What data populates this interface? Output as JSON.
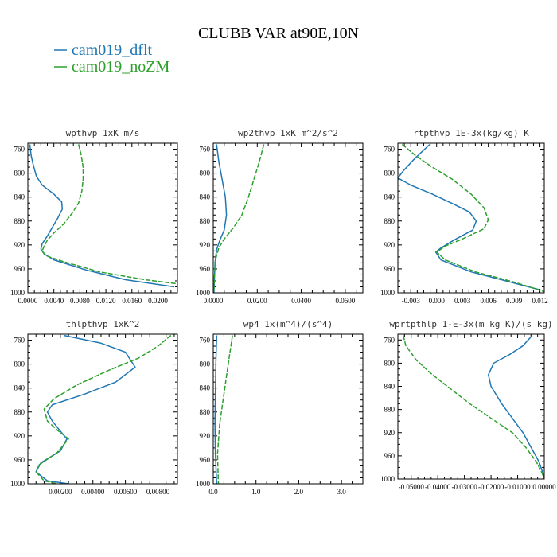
{
  "title": "CLUBB VAR at90E,10N",
  "legend": [
    {
      "name": "cam019_dflt",
      "color": "#1f77b4",
      "dash": "none"
    },
    {
      "name": "cam019_noZM",
      "color": "#2ca02c",
      "dash": "6,2"
    }
  ],
  "chart_data": [
    {
      "type": "line",
      "title": "wpthvp  1xK m/s",
      "xlim": [
        0,
        0.023
      ],
      "xticks": [
        0,
        0.004,
        0.008,
        0.012,
        0.016,
        0.02
      ],
      "xtick_labels": [
        "0.0000",
        "0.0040",
        "0.0080",
        "0.0120",
        "0.0160",
        "0.0200"
      ],
      "ylim": [
        750,
        1000
      ],
      "yticks": [
        760,
        800,
        840,
        880,
        920,
        960,
        1000
      ],
      "series": [
        {
          "name": "cam019_dflt",
          "points": [
            [
              0.0003,
              752
            ],
            [
              0.0005,
              770
            ],
            [
              0.0008,
              785
            ],
            [
              0.0013,
              805
            ],
            [
              0.0022,
              820
            ],
            [
              0.004,
              835
            ],
            [
              0.0052,
              848
            ],
            [
              0.0053,
              860
            ],
            [
              0.0046,
              875
            ],
            [
              0.0038,
              890
            ],
            [
              0.003,
              905
            ],
            [
              0.0022,
              918
            ],
            [
              0.002,
              927
            ],
            [
              0.0025,
              935
            ],
            [
              0.004,
              945
            ],
            [
              0.009,
              962
            ],
            [
              0.015,
              978
            ],
            [
              0.0225,
              990
            ]
          ]
        },
        {
          "name": "cam019_noZM",
          "points": [
            [
              0.0078,
              752
            ],
            [
              0.0082,
              770
            ],
            [
              0.0085,
              790
            ],
            [
              0.0085,
              810
            ],
            [
              0.0083,
              830
            ],
            [
              0.0078,
              850
            ],
            [
              0.0068,
              867
            ],
            [
              0.0055,
              885
            ],
            [
              0.004,
              900
            ],
            [
              0.003,
              912
            ],
            [
              0.0025,
              922
            ],
            [
              0.0022,
              930
            ],
            [
              0.0028,
              938
            ],
            [
              0.0055,
              948
            ],
            [
              0.011,
              965
            ],
            [
              0.018,
              978
            ],
            [
              0.023,
              985
            ]
          ]
        }
      ]
    },
    {
      "type": "line",
      "title": "wp2thvp  1xK m^2/s^2",
      "xlim": [
        0,
        0.068
      ],
      "xticks": [
        0,
        0.02,
        0.04,
        0.06
      ],
      "xtick_labels": [
        "0.0000",
        "0.0200",
        "0.0400",
        "0.0600"
      ],
      "ylim": [
        750,
        1000
      ],
      "yticks": [
        760,
        800,
        840,
        880,
        920,
        960,
        1000
      ],
      "series": [
        {
          "name": "cam019_dflt",
          "points": [
            [
              0.0015,
              752
            ],
            [
              0.0025,
              780
            ],
            [
              0.004,
              810
            ],
            [
              0.0055,
              840
            ],
            [
              0.006,
              870
            ],
            [
              0.005,
              895
            ],
            [
              0.003,
              912
            ],
            [
              0.0015,
              928
            ],
            [
              0.0008,
              950
            ],
            [
              0.0005,
              980
            ],
            [
              0.0003,
              1000
            ]
          ]
        },
        {
          "name": "cam019_noZM",
          "points": [
            [
              0.023,
              752
            ],
            [
              0.021,
              780
            ],
            [
              0.0185,
              810
            ],
            [
              0.016,
              840
            ],
            [
              0.013,
              870
            ],
            [
              0.009,
              892
            ],
            [
              0.005,
              910
            ],
            [
              0.0025,
              925
            ],
            [
              0.001,
              945
            ],
            [
              0.0005,
              975
            ],
            [
              0.0003,
              1000
            ]
          ]
        }
      ]
    },
    {
      "type": "line",
      "title": "rtpthvp  1E-3x(kg/kg) K",
      "xlim": [
        -0.0045,
        0.0125
      ],
      "xticks": [
        -0.003,
        0,
        0.003,
        0.006,
        0.009,
        0.012
      ],
      "xtick_labels": [
        "-0.003",
        "0.000",
        "0.003",
        "0.006",
        "0.009",
        "0.012"
      ],
      "ylim": [
        750,
        1000
      ],
      "yticks": [
        760,
        800,
        840,
        880,
        920,
        960,
        1000
      ],
      "series": [
        {
          "name": "cam019_dflt",
          "points": [
            [
              -0.0008,
              752
            ],
            [
              -0.0025,
              775
            ],
            [
              -0.0038,
              795
            ],
            [
              -0.0045,
              808
            ],
            [
              -0.003,
              820
            ],
            [
              -0.0005,
              835
            ],
            [
              0.002,
              852
            ],
            [
              0.0038,
              865
            ],
            [
              0.0046,
              880
            ],
            [
              0.0042,
              895
            ],
            [
              0.002,
              912
            ],
            [
              0.0005,
              925
            ],
            [
              -0.0001,
              932
            ],
            [
              0.0005,
              945
            ],
            [
              0.004,
              965
            ],
            [
              0.008,
              980
            ],
            [
              0.012,
              995
            ]
          ]
        },
        {
          "name": "cam019_noZM",
          "points": [
            [
              -0.004,
              752
            ],
            [
              -0.0025,
              770
            ],
            [
              -0.0005,
              790
            ],
            [
              0.0018,
              810
            ],
            [
              0.004,
              835
            ],
            [
              0.0055,
              858
            ],
            [
              0.006,
              878
            ],
            [
              0.0055,
              893
            ],
            [
              0.003,
              910
            ],
            [
              0.001,
              922
            ],
            [
              0.0,
              932
            ],
            [
              0.001,
              945
            ],
            [
              0.0045,
              965
            ],
            [
              0.009,
              982
            ],
            [
              0.0125,
              998
            ]
          ]
        }
      ]
    },
    {
      "type": "line",
      "title": "thlpthvp  1xK^2",
      "xlim": [
        0,
        0.0092
      ],
      "xticks": [
        0.002,
        0.004,
        0.006,
        0.008
      ],
      "xtick_labels": [
        "0.00200",
        "0.00400",
        "0.00600",
        "0.00800"
      ],
      "ylim": [
        750,
        1000
      ],
      "yticks": [
        760,
        800,
        840,
        880,
        920,
        960,
        1000
      ],
      "series": [
        {
          "name": "cam019_dflt",
          "points": [
            [
              0.0022,
              752
            ],
            [
              0.0045,
              765
            ],
            [
              0.006,
              780
            ],
            [
              0.0066,
              805
            ],
            [
              0.0054,
              830
            ],
            [
              0.0035,
              850
            ],
            [
              0.0015,
              868
            ],
            [
              0.0012,
              880
            ],
            [
              0.0015,
              895
            ],
            [
              0.002,
              912
            ],
            [
              0.0024,
              925
            ],
            [
              0.002,
              945
            ],
            [
              0.0008,
              965
            ],
            [
              0.0005,
              980
            ],
            [
              0.0012,
              995
            ],
            [
              0.0025,
              1000
            ]
          ]
        },
        {
          "name": "cam019_noZM",
          "points": [
            [
              0.0088,
              752
            ],
            [
              0.008,
              770
            ],
            [
              0.0068,
              790
            ],
            [
              0.005,
              810
            ],
            [
              0.003,
              835
            ],
            [
              0.0016,
              858
            ],
            [
              0.001,
              875
            ],
            [
              0.0012,
              895
            ],
            [
              0.0018,
              910
            ],
            [
              0.0025,
              925
            ],
            [
              0.0018,
              948
            ],
            [
              0.0007,
              968
            ],
            [
              0.0005,
              980
            ],
            [
              0.001,
              995
            ],
            [
              0.0018,
              1000
            ]
          ]
        }
      ]
    },
    {
      "type": "line",
      "title": "wp4  1x(m^4)/(s^4)",
      "xlim": [
        0,
        3.5
      ],
      "xticks": [
        0,
        1,
        2,
        3
      ],
      "xtick_labels": [
        "0.0",
        "1.0",
        "2.0",
        "3.0"
      ],
      "ylim": [
        750,
        1000
      ],
      "yticks": [
        760,
        800,
        840,
        880,
        920,
        960,
        1000
      ],
      "series": [
        {
          "name": "cam019_dflt",
          "points": [
            [
              0.08,
              752
            ],
            [
              0.06,
              800
            ],
            [
              0.05,
              850
            ],
            [
              0.04,
              900
            ],
            [
              0.05,
              950
            ],
            [
              0.08,
              1000
            ]
          ]
        },
        {
          "name": "cam019_noZM",
          "points": [
            [
              0.45,
              752
            ],
            [
              0.35,
              800
            ],
            [
              0.25,
              850
            ],
            [
              0.15,
              900
            ],
            [
              0.1,
              950
            ],
            [
              0.12,
              1000
            ]
          ]
        }
      ]
    },
    {
      "type": "line",
      "title": "wprtpthlp  1-E-3x(m kg K)/(s kg)",
      "xlim": [
        -0.055,
        0
      ],
      "xticks": [
        -0.05,
        -0.04,
        -0.03,
        -0.02,
        -0.01,
        0
      ],
      "xtick_labels": [
        "-0.05000",
        "-0.04000",
        "-0.03000",
        "-0.02000",
        "-0.01000",
        "0.00000"
      ],
      "ylim": [
        750,
        1000
      ],
      "yticks": [
        760,
        800,
        840,
        880,
        920,
        960,
        1000
      ],
      "series": [
        {
          "name": "cam019_dflt",
          "points": [
            [
              -0.0045,
              752
            ],
            [
              -0.008,
              770
            ],
            [
              -0.013,
              785
            ],
            [
              -0.019,
              800
            ],
            [
              -0.021,
              820
            ],
            [
              -0.02,
              840
            ],
            [
              -0.016,
              870
            ],
            [
              -0.012,
              895
            ],
            [
              -0.008,
              920
            ],
            [
              -0.005,
              945
            ],
            [
              -0.002,
              970
            ],
            [
              -0.0005,
              990
            ],
            [
              0.0,
              1000
            ]
          ]
        },
        {
          "name": "cam019_noZM",
          "points": [
            [
              -0.053,
              752
            ],
            [
              -0.052,
              770
            ],
            [
              -0.048,
              795
            ],
            [
              -0.042,
              820
            ],
            [
              -0.035,
              845
            ],
            [
              -0.028,
              870
            ],
            [
              -0.02,
              895
            ],
            [
              -0.012,
              920
            ],
            [
              -0.007,
              945
            ],
            [
              -0.003,
              970
            ],
            [
              -0.0008,
              990
            ],
            [
              0.0,
              1000
            ]
          ]
        }
      ]
    }
  ]
}
